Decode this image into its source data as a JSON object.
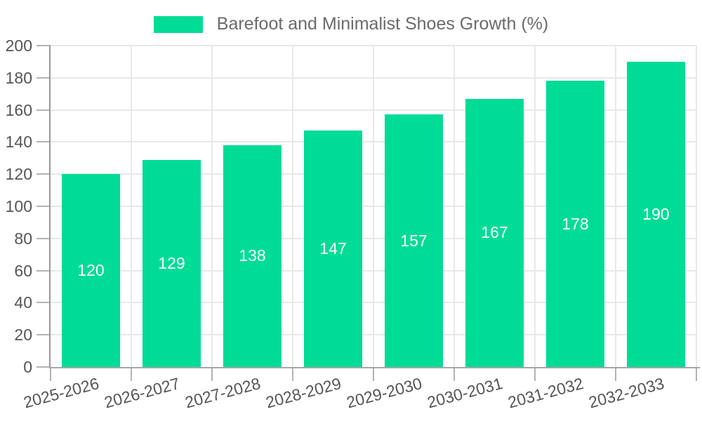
{
  "chart_data": {
    "type": "bar",
    "title": "Barefoot and Minimalist Shoes Growth (%)",
    "categories": [
      "2025-2026",
      "2026-2027",
      "2027-2028",
      "2028-2029",
      "2029-2030",
      "2030-2031",
      "2031-2032",
      "2032-2033"
    ],
    "values": [
      120,
      129,
      138,
      147,
      157,
      167,
      178,
      190
    ],
    "xlabel": "",
    "ylabel": "",
    "ylim": [
      0,
      200
    ],
    "ytick_step": 20,
    "grid": true,
    "legend_position": "top-center",
    "bar_color": "#00DC96",
    "value_label_color": "#ffffff",
    "axis_color": "#999999",
    "gridline_color": "#e8e8e8",
    "tick_label_color": "#555555",
    "legend_text_color": "#6b6b6b"
  }
}
